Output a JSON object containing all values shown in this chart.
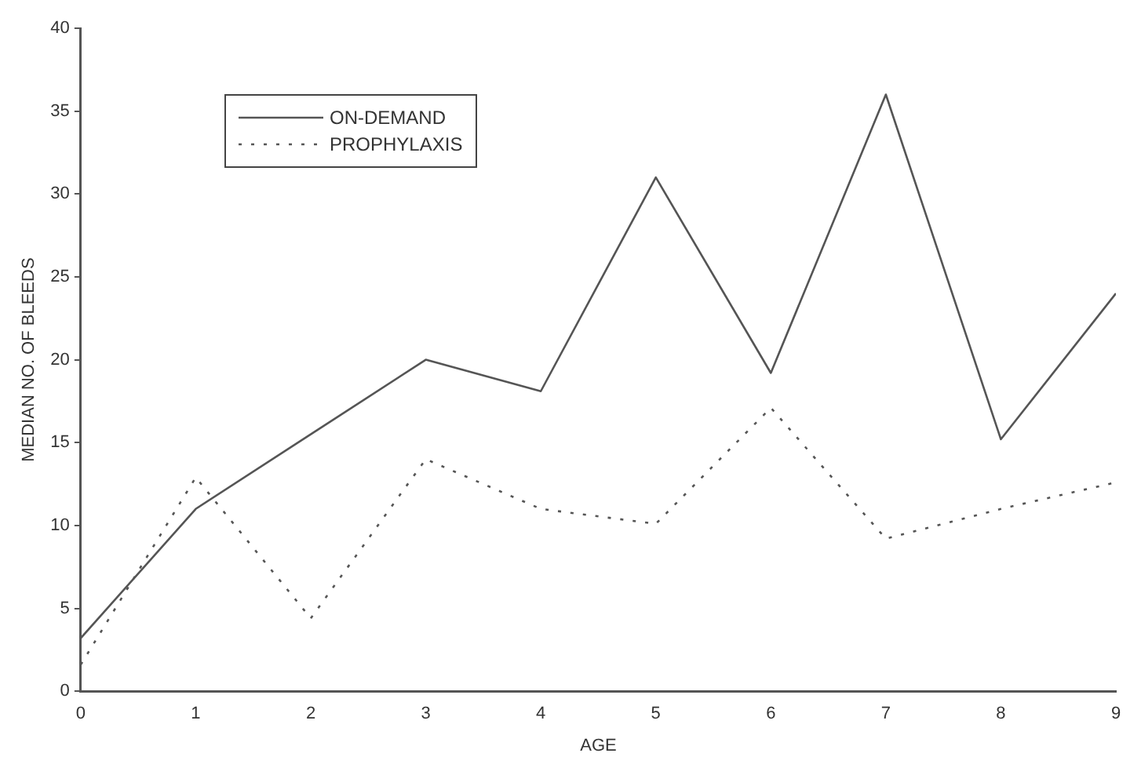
{
  "chart_data": {
    "type": "line",
    "xlabel": "AGE",
    "ylabel": "MEDIAN NO. OF BLEEDS",
    "x": [
      0,
      1,
      2,
      3,
      4,
      5,
      6,
      7,
      8,
      9
    ],
    "series": [
      {
        "name": "ON-DEMAND",
        "color": "#555555",
        "line_style": "solid",
        "values": [
          3.2,
          11,
          15.5,
          20,
          18.1,
          31,
          19.2,
          36,
          15.2,
          24
        ]
      },
      {
        "name": "PROPHYLAXIS",
        "color": "#555555",
        "line_style": "dotted",
        "values": [
          1.6,
          12.9,
          4.4,
          14,
          11,
          10.1,
          17.1,
          9.2,
          11,
          12.6
        ]
      }
    ],
    "xlim": [
      0,
      9
    ],
    "xticks": [
      0,
      1,
      2,
      3,
      4,
      5,
      6,
      7,
      8,
      9
    ],
    "ylim": [
      0,
      40
    ],
    "yticks": [
      0,
      5,
      10,
      15,
      20,
      25,
      30,
      35,
      40
    ],
    "grid": false,
    "legend": "top left",
    "marker": "none"
  }
}
